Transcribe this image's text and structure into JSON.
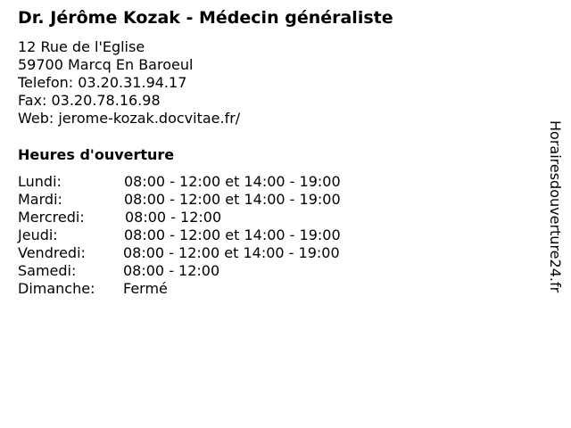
{
  "title": "Dr. Jérôme Kozak - Médecin généraliste",
  "contact": {
    "street": "12 Rue de l'Eglise",
    "city": "59700 Marcq En Baroeul",
    "phone": "Telefon: 03.20.31.94.17",
    "fax": "Fax: 03.20.78.16.98",
    "web": "Web: jerome-kozak.docvitae.fr/"
  },
  "hours_title": "Heures d'ouverture",
  "hours": [
    {
      "day": "Lundi:",
      "time": "08:00 - 12:00 et 14:00 - 19:00"
    },
    {
      "day": "Mardi:",
      "time": "08:00 - 12:00 et 14:00 - 19:00"
    },
    {
      "day": "Mercredi:",
      "time": "08:00 - 12:00"
    },
    {
      "day": "Jeudi:",
      "time": "08:00 - 12:00 et 14:00 - 19:00"
    },
    {
      "day": "Vendredi:",
      "time": "08:00 - 12:00 et 14:00 - 19:00"
    },
    {
      "day": "Samedi:",
      "time": "08:00 - 12:00"
    },
    {
      "day": "Dimanche:",
      "time": "Fermé"
    }
  ],
  "side_brand": "Horairesdouverture24.fr"
}
